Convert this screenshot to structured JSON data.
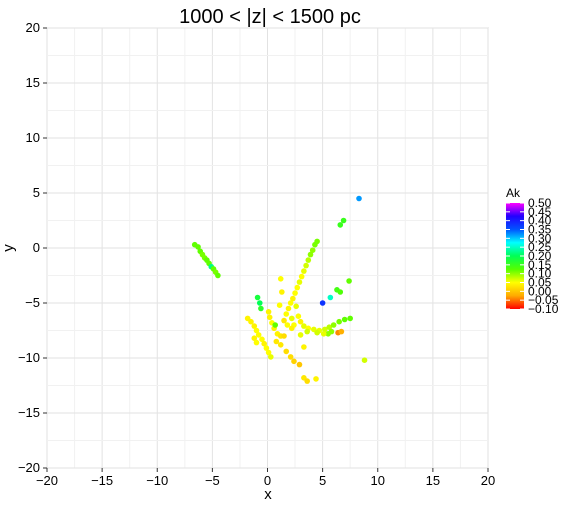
{
  "chart_data": {
    "type": "scatter",
    "title": "1000 < |z| < 1500 pc",
    "xlabel": "x",
    "ylabel": "y",
    "xlim": [
      -20,
      20
    ],
    "ylim": [
      -20,
      20
    ],
    "xticks": [
      -20,
      -15,
      -10,
      -5,
      0,
      5,
      10,
      15,
      20
    ],
    "yticks": [
      -20,
      -15,
      -10,
      -5,
      0,
      5,
      10,
      15,
      20
    ],
    "xtick_labels": [
      "−20",
      "−15",
      "−10",
      "−5",
      "0",
      "5",
      "10",
      "15",
      "20"
    ],
    "ytick_labels": [
      "−20",
      "−15",
      "−10",
      "−5",
      "0",
      "5",
      "10",
      "15",
      "20"
    ],
    "grid": true,
    "color_scale": {
      "title": "Ak",
      "domain": [
        -0.1,
        0.5
      ],
      "ticks": [
        0.5,
        0.45,
        0.4,
        0.35,
        0.3,
        0.25,
        0.2,
        0.15,
        0.1,
        0.05,
        0.0,
        -0.05,
        -0.1
      ],
      "tick_labels": [
        "0.50",
        "0.45",
        "0.40",
        "0.35",
        "0.30",
        "0.25",
        "0.20",
        "0.15",
        "0.10",
        "0.05",
        "0.00",
        "−0.05",
        "−0.10"
      ],
      "colors": [
        "#ff0000",
        "#ffaa00",
        "#ffff00",
        "#55ff00",
        "#00ff55",
        "#00ffff",
        "#0055ff",
        "#2200ff",
        "#ff00ff"
      ]
    },
    "points": [
      {
        "x": 8.3,
        "y": 4.5,
        "ak": 0.32
      },
      {
        "x": 6.9,
        "y": 2.5,
        "ak": 0.15
      },
      {
        "x": 6.6,
        "y": 2.1,
        "ak": 0.15
      },
      {
        "x": -6.6,
        "y": 0.3,
        "ak": 0.12
      },
      {
        "x": -6.3,
        "y": 0.1,
        "ak": 0.12
      },
      {
        "x": -6.1,
        "y": -0.3,
        "ak": 0.12
      },
      {
        "x": -5.9,
        "y": -0.6,
        "ak": 0.11
      },
      {
        "x": -5.7,
        "y": -0.9,
        "ak": 0.11
      },
      {
        "x": -5.5,
        "y": -1.1,
        "ak": 0.12
      },
      {
        "x": -5.3,
        "y": -1.4,
        "ak": 0.12
      },
      {
        "x": -5.1,
        "y": -1.7,
        "ak": 0.22
      },
      {
        "x": -4.9,
        "y": -1.9,
        "ak": 0.12
      },
      {
        "x": -4.7,
        "y": -2.2,
        "ak": 0.11
      },
      {
        "x": -4.5,
        "y": -2.5,
        "ak": 0.12
      },
      {
        "x": 4.5,
        "y": 0.6,
        "ak": 0.11
      },
      {
        "x": 4.3,
        "y": 0.3,
        "ak": 0.11
      },
      {
        "x": 4.1,
        "y": -0.2,
        "ak": 0.1
      },
      {
        "x": 3.9,
        "y": -0.6,
        "ak": 0.1
      },
      {
        "x": 3.7,
        "y": -1.1,
        "ak": 0.08
      },
      {
        "x": 3.5,
        "y": -1.6,
        "ak": 0.07
      },
      {
        "x": 3.3,
        "y": -2.1,
        "ak": 0.06
      },
      {
        "x": 3.1,
        "y": -2.6,
        "ak": 0.05
      },
      {
        "x": 2.9,
        "y": -3.1,
        "ak": 0.06
      },
      {
        "x": 2.7,
        "y": -3.6,
        "ak": 0.05
      },
      {
        "x": 2.5,
        "y": -4.1,
        "ak": 0.05
      },
      {
        "x": 2.3,
        "y": -4.6,
        "ak": 0.04
      },
      {
        "x": 2.1,
        "y": -5.0,
        "ak": 0.05
      },
      {
        "x": 1.9,
        "y": -5.5,
        "ak": 0.04
      },
      {
        "x": 1.7,
        "y": -6.0,
        "ak": 0.05
      },
      {
        "x": 1.2,
        "y": -2.8,
        "ak": 0.05
      },
      {
        "x": 1.3,
        "y": -4.0,
        "ak": 0.04
      },
      {
        "x": 1.1,
        "y": -5.2,
        "ak": 0.05
      },
      {
        "x": 2.6,
        "y": -5.3,
        "ak": 0.06
      },
      {
        "x": 2.8,
        "y": -6.2,
        "ak": 0.05
      },
      {
        "x": 3.0,
        "y": -6.7,
        "ak": 0.04
      },
      {
        "x": 2.2,
        "y": -6.4,
        "ak": 0.06
      },
      {
        "x": 2.4,
        "y": -7.0,
        "ak": 0.05
      },
      {
        "x": 3.3,
        "y": -7.1,
        "ak": 0.06
      },
      {
        "x": 3.7,
        "y": -7.3,
        "ak": 0.05
      },
      {
        "x": 4.2,
        "y": -7.4,
        "ak": 0.06
      },
      {
        "x": 4.7,
        "y": -7.5,
        "ak": 0.06
      },
      {
        "x": 5.2,
        "y": -7.4,
        "ak": 0.07
      },
      {
        "x": 5.6,
        "y": -7.2,
        "ak": 0.08
      },
      {
        "x": 6.0,
        "y": -7.0,
        "ak": 0.1
      },
      {
        "x": 6.5,
        "y": -6.7,
        "ak": 0.11
      },
      {
        "x": 7.0,
        "y": -6.5,
        "ak": 0.12
      },
      {
        "x": 7.5,
        "y": -6.4,
        "ak": 0.12
      },
      {
        "x": 5.0,
        "y": -5.0,
        "ak": 0.38
      },
      {
        "x": 5.7,
        "y": -4.5,
        "ak": 0.25
      },
      {
        "x": 6.3,
        "y": -3.8,
        "ak": 0.14
      },
      {
        "x": 6.6,
        "y": -4.0,
        "ak": 0.13
      },
      {
        "x": 7.4,
        "y": -3.0,
        "ak": 0.12
      },
      {
        "x": 5.5,
        "y": -7.8,
        "ak": 0.1
      },
      {
        "x": 5.8,
        "y": -7.6,
        "ak": 0.1
      },
      {
        "x": 6.4,
        "y": -7.7,
        "ak": -0.04
      },
      {
        "x": 6.7,
        "y": -7.6,
        "ak": -0.02
      },
      {
        "x": 8.8,
        "y": -10.2,
        "ak": 0.07
      },
      {
        "x": -0.9,
        "y": -4.5,
        "ak": 0.18
      },
      {
        "x": -0.7,
        "y": -5.0,
        "ak": 0.2
      },
      {
        "x": -0.6,
        "y": -5.5,
        "ak": 0.16
      },
      {
        "x": 0.1,
        "y": -5.8,
        "ak": 0.04
      },
      {
        "x": 0.2,
        "y": -6.3,
        "ak": 0.04
      },
      {
        "x": 0.4,
        "y": -6.8,
        "ak": 0.05
      },
      {
        "x": 0.6,
        "y": -7.3,
        "ak": 0.04
      },
      {
        "x": 0.9,
        "y": -7.8,
        "ak": 0.04
      },
      {
        "x": 1.2,
        "y": -8.0,
        "ak": 0.03
      },
      {
        "x": 0.7,
        "y": -7.0,
        "ak": 0.12
      },
      {
        "x": 1.5,
        "y": -6.6,
        "ak": 0.03
      },
      {
        "x": -1.8,
        "y": -6.4,
        "ak": 0.04
      },
      {
        "x": -1.5,
        "y": -6.7,
        "ak": 0.04
      },
      {
        "x": -1.2,
        "y": -7.1,
        "ak": 0.04
      },
      {
        "x": -1.0,
        "y": -7.5,
        "ak": 0.05
      },
      {
        "x": -0.8,
        "y": -7.9,
        "ak": 0.05
      },
      {
        "x": -0.5,
        "y": -8.3,
        "ak": 0.05
      },
      {
        "x": -0.3,
        "y": -8.7,
        "ak": 0.04
      },
      {
        "x": -0.1,
        "y": -9.1,
        "ak": 0.05
      },
      {
        "x": 0.1,
        "y": -9.5,
        "ak": 0.05
      },
      {
        "x": 0.3,
        "y": -9.9,
        "ak": 0.06
      },
      {
        "x": -1.2,
        "y": -8.2,
        "ak": 0.04
      },
      {
        "x": -1.0,
        "y": -8.6,
        "ak": 0.05
      },
      {
        "x": 0.8,
        "y": -8.5,
        "ak": 0.03
      },
      {
        "x": 1.2,
        "y": -8.8,
        "ak": 0.03
      },
      {
        "x": 1.7,
        "y": -9.4,
        "ak": 0.02
      },
      {
        "x": 2.1,
        "y": -9.9,
        "ak": 0.02
      },
      {
        "x": 2.4,
        "y": -10.3,
        "ak": 0.01
      },
      {
        "x": 2.9,
        "y": -10.6,
        "ak": 0.0
      },
      {
        "x": 1.5,
        "y": -8.0,
        "ak": 0.02
      },
      {
        "x": 3.3,
        "y": -9.0,
        "ak": 0.04
      },
      {
        "x": 3.3,
        "y": -11.8,
        "ak": 0.03
      },
      {
        "x": 3.6,
        "y": -12.1,
        "ak": 0.02
      },
      {
        "x": 4.4,
        "y": -11.9,
        "ak": 0.04
      },
      {
        "x": 3.6,
        "y": -7.6,
        "ak": 0.07
      },
      {
        "x": 2.2,
        "y": -7.3,
        "ak": 0.04
      },
      {
        "x": 1.8,
        "y": -7.0,
        "ak": 0.05
      },
      {
        "x": 3.0,
        "y": -7.9,
        "ak": 0.06
      },
      {
        "x": 4.5,
        "y": -7.7,
        "ak": 0.07
      },
      {
        "x": 5.1,
        "y": -7.8,
        "ak": 0.06
      }
    ]
  }
}
